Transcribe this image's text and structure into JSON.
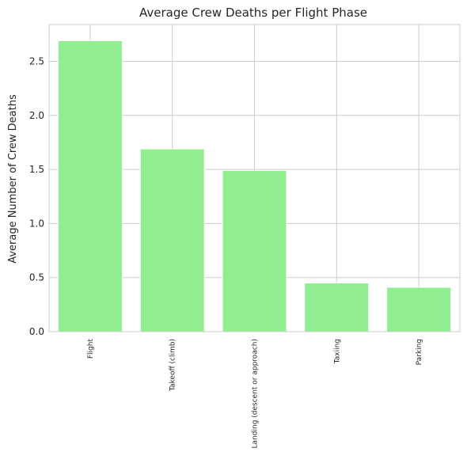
{
  "chart_data": {
    "type": "bar",
    "title": "Average Crew Deaths per Flight Phase",
    "xlabel": "",
    "ylabel": "Average Number of Crew Deaths",
    "categories": [
      "Flight",
      "Takeoff (climb)",
      "Landing (descent or approach)",
      "Taxiing",
      "Parking"
    ],
    "values": [
      2.69,
      1.69,
      1.49,
      0.45,
      0.41
    ],
    "ylim": [
      0,
      2.84
    ],
    "yticks": [
      "0.0",
      "0.5",
      "1.0",
      "1.5",
      "2.0",
      "2.5"
    ],
    "bar_color": "#90ee90",
    "grid": true,
    "legend": "none"
  }
}
